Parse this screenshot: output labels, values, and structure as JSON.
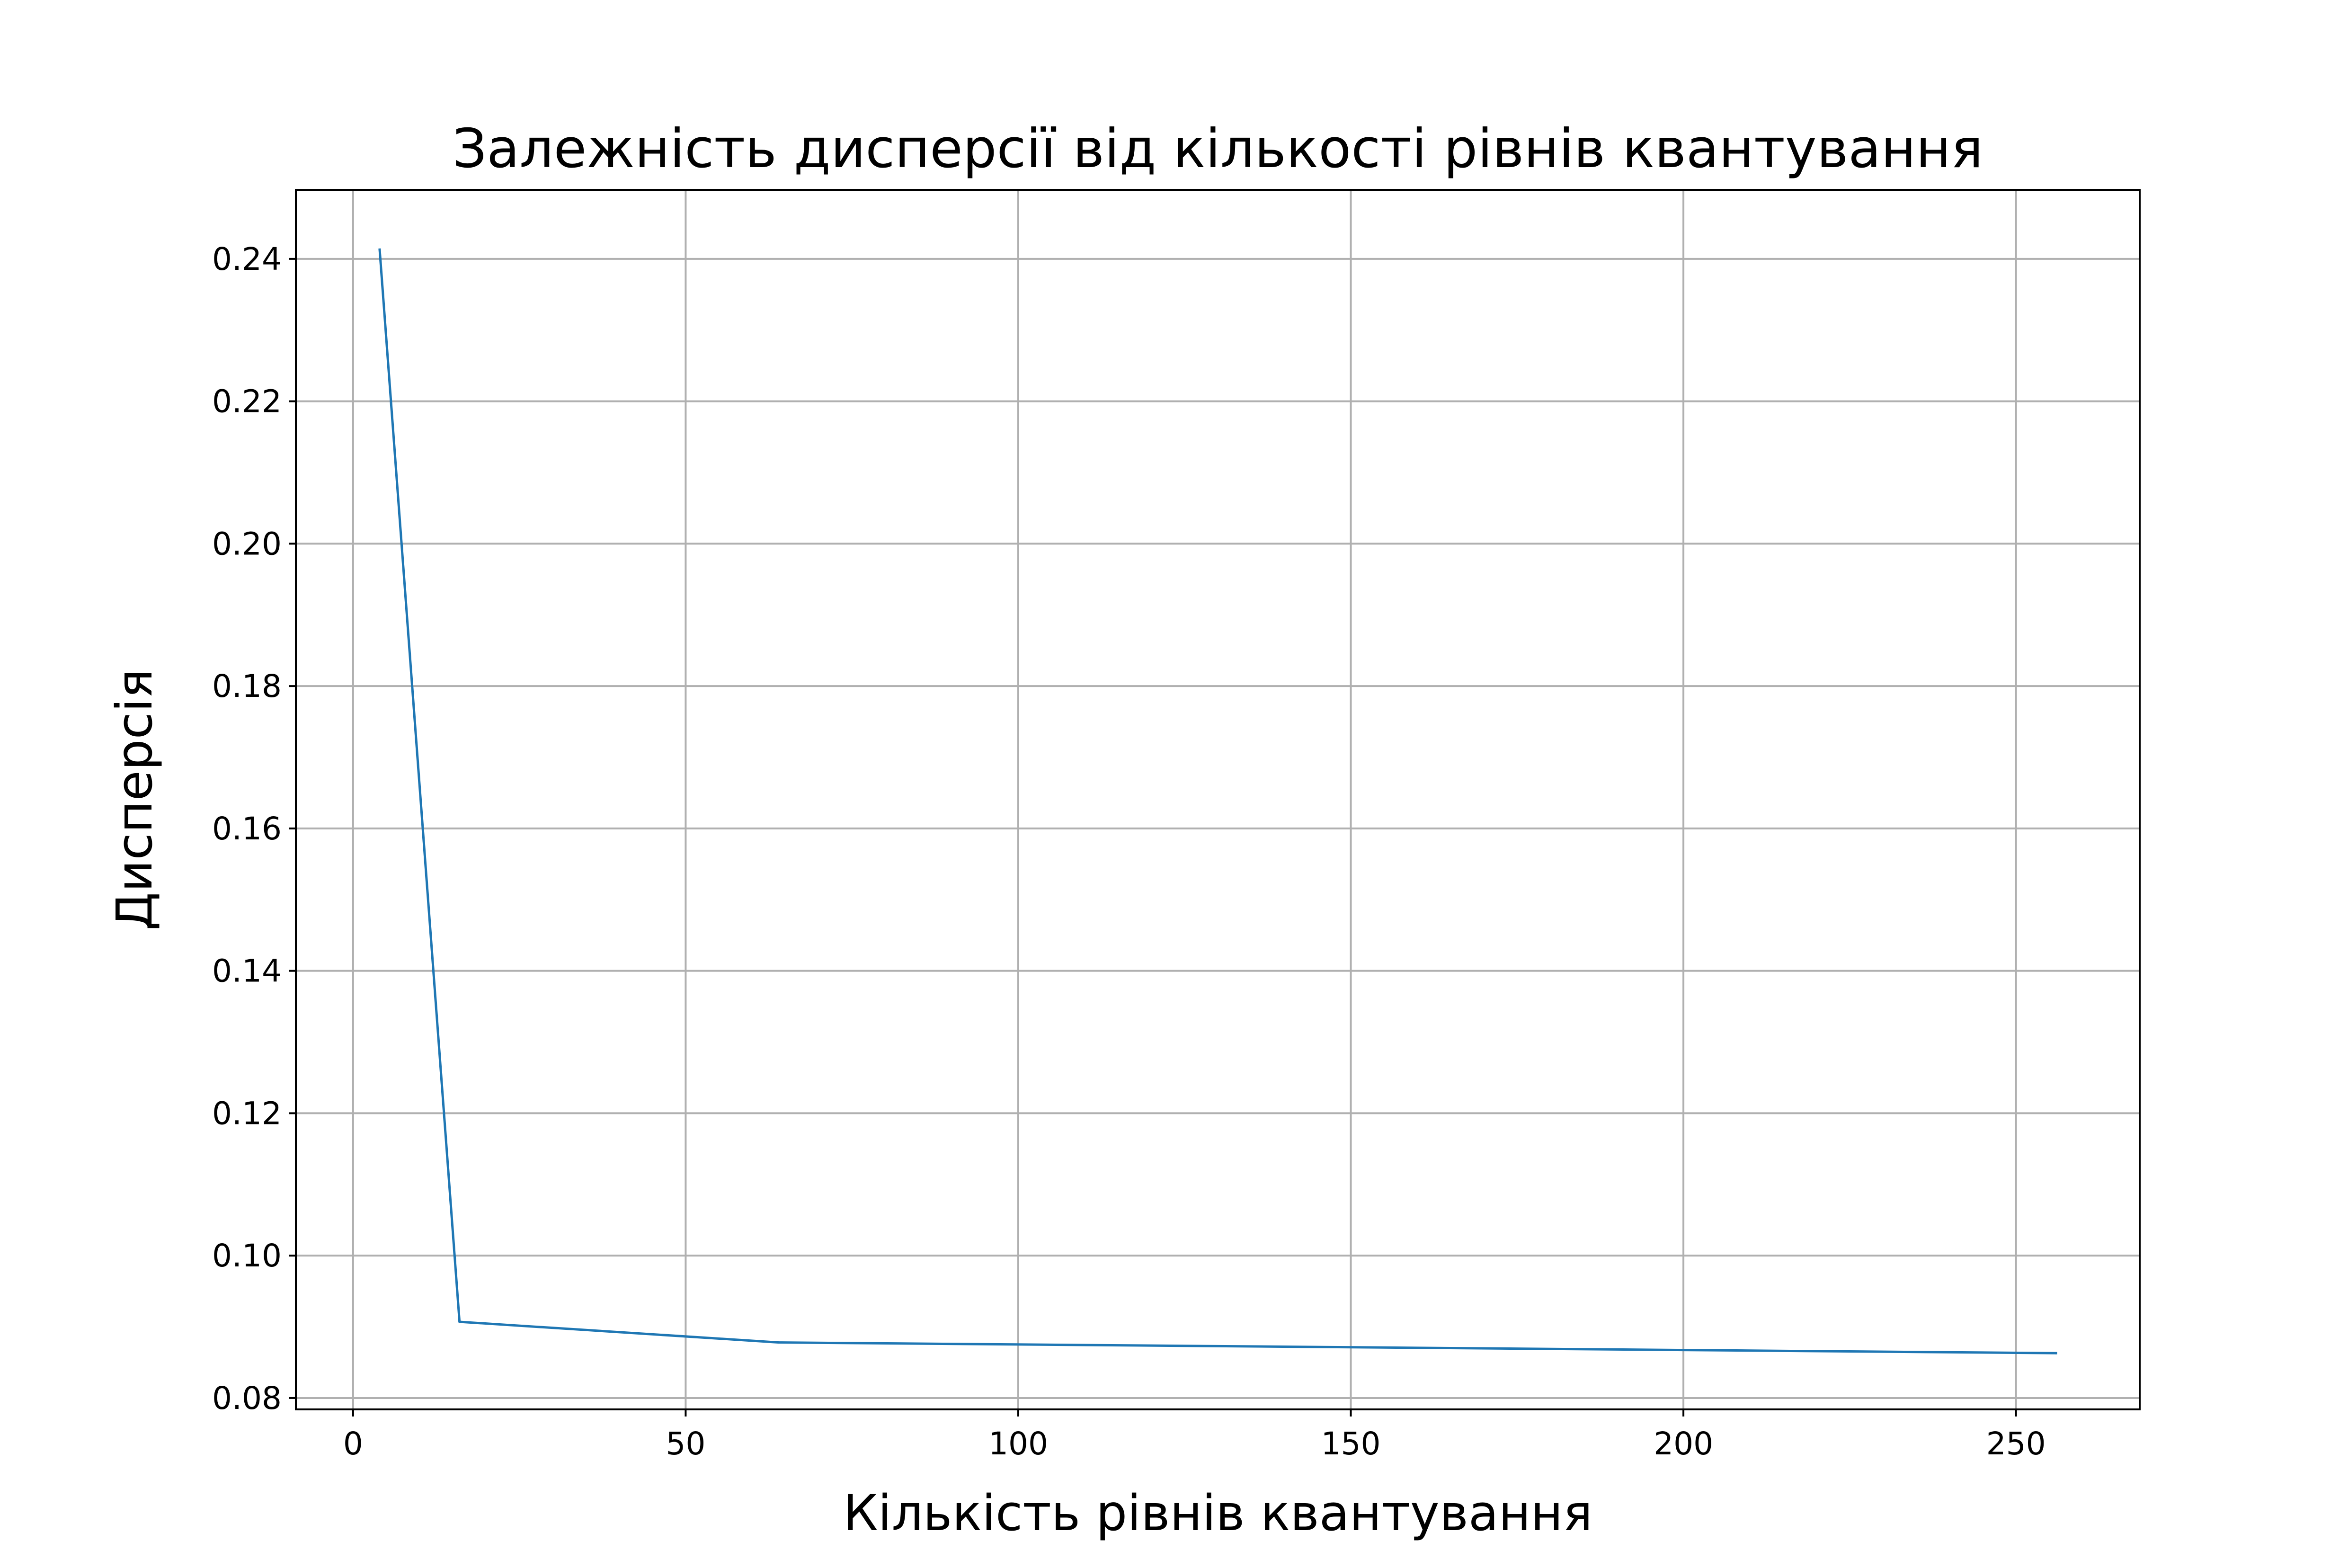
{
  "chart_data": {
    "type": "line",
    "title": "Залежність дисперсії від кількості рівнів квантування",
    "xlabel": "Кількість рівнів квантування",
    "ylabel": "Дисперсія",
    "xlim": [
      -8.6,
      268.6
    ],
    "ylim": [
      0.0784,
      0.2497
    ],
    "xticks": [
      0,
      50,
      100,
      150,
      200,
      250
    ],
    "yticks": [
      0.08,
      0.1,
      0.12,
      0.14,
      0.16,
      0.18,
      0.2,
      0.22,
      0.24
    ],
    "grid": true,
    "series": [
      {
        "color": "#1f77b4",
        "x": [
          4,
          16,
          64,
          256
        ],
        "y": [
          0.2413,
          0.0907,
          0.0878,
          0.0863
        ]
      }
    ]
  }
}
